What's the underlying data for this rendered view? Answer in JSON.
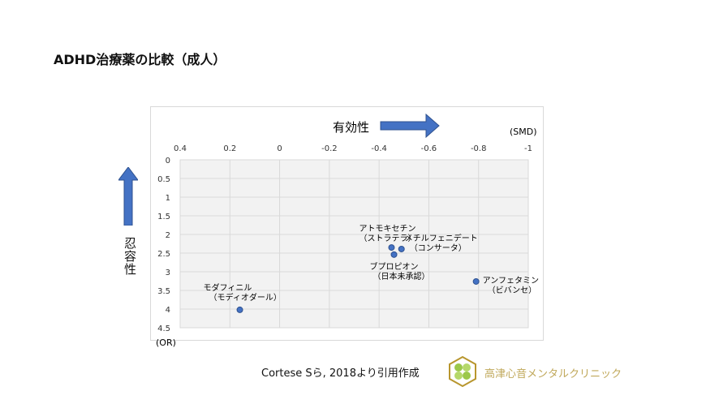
{
  "title": "ADHD治療薬の比較（成人）",
  "chart_data": {
    "type": "scatter",
    "x_title": "有効性",
    "y_title": "忍容性",
    "x_unit": "(SMD)",
    "y_unit": "(OR)",
    "xlim": [
      0.4,
      -1
    ],
    "ylim": [
      0,
      4.5
    ],
    "x_reversed": true,
    "y_reversed": true,
    "x_position": "top",
    "grid": true,
    "x_ticks": [
      "0.4",
      "0.2",
      "0",
      "-0.2",
      "-0.4",
      "-0.6",
      "-0.8",
      "-1"
    ],
    "y_ticks": [
      "0",
      "0.5",
      "1",
      "1.5",
      "2",
      "2.5",
      "3",
      "3.5",
      "4",
      "4.5"
    ],
    "points": [
      {
        "name": "アトモキセチン",
        "sub": "（ストラテラ）",
        "x": -0.45,
        "y": 2.35
      },
      {
        "name": "メチルフェニデート",
        "sub": "（コンサータ）",
        "x": -0.49,
        "y": 2.39
      },
      {
        "name": "ブプロピオン",
        "sub": "（日本未承認）",
        "x": -0.46,
        "y": 2.54
      },
      {
        "name": "アンフェタミン",
        "sub": "（ビバンセ）",
        "x": -0.79,
        "y": 3.26
      },
      {
        "name": "モダフィニル",
        "sub": "（モディオダール）",
        "x": 0.16,
        "y": 4.02
      }
    ],
    "colors": {
      "point": "#4472c4",
      "arrow": "#4472c4",
      "plot_bg": "#f2f2f2",
      "grid": "#d9d9d9"
    }
  },
  "footer": {
    "citation": "Cortese Sら, 2018より引用作成",
    "clinic": "高津心音メンタルクリニック"
  }
}
